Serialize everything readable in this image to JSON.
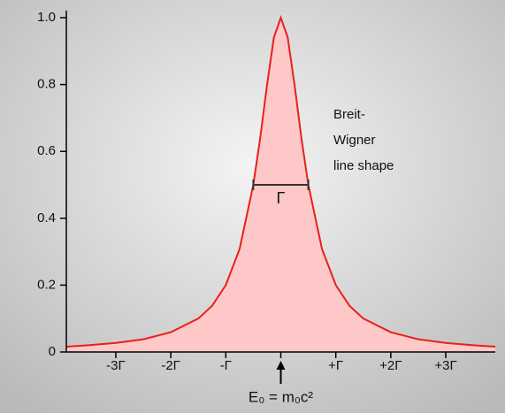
{
  "chart_data": {
    "type": "area",
    "x": [
      -3.9,
      -3.5,
      -3,
      -2.5,
      -2,
      -1.5,
      -1.25,
      -1,
      -0.75,
      -0.5,
      -0.375,
      -0.25,
      -0.125,
      0,
      0.125,
      0.25,
      0.375,
      0.5,
      0.75,
      1,
      1.25,
      1.5,
      2,
      2.5,
      3,
      3.5,
      3.9
    ],
    "values": [
      0.016,
      0.02,
      0.027,
      0.038,
      0.059,
      0.1,
      0.138,
      0.2,
      0.308,
      0.5,
      0.64,
      0.8,
      0.941,
      1,
      0.941,
      0.8,
      0.64,
      0.5,
      0.308,
      0.2,
      0.138,
      0.1,
      0.059,
      0.038,
      0.027,
      0.02,
      0.016
    ],
    "color": "#e8201c",
    "fill_color": "#ffc8c8",
    "xlim": [
      -3.9,
      3.9
    ],
    "ylim": [
      0,
      1
    ],
    "xticks": [
      {
        "value": -3,
        "label": "-3Γ"
      },
      {
        "value": -2,
        "label": "-2Γ"
      },
      {
        "value": -1,
        "label": "-Γ"
      },
      {
        "value": 1,
        "label": "+Γ"
      },
      {
        "value": 2,
        "label": "+2Γ"
      },
      {
        "value": 3,
        "label": "+3Γ"
      }
    ],
    "yticks": [
      0,
      0.2,
      0.4,
      0.6,
      {
        "value": 0.8,
        "label": "0.8"
      },
      {
        "value": 1,
        "label": "1.0"
      }
    ],
    "annotation_lines": [
      "Breit-",
      "Wigner",
      "line shape"
    ],
    "width_marker": {
      "label": "Γ",
      "x": [
        -0.5,
        0.5
      ],
      "y": 0.5
    },
    "center_marker": {
      "label": "E₀ = m₀c²",
      "x": 0
    }
  }
}
